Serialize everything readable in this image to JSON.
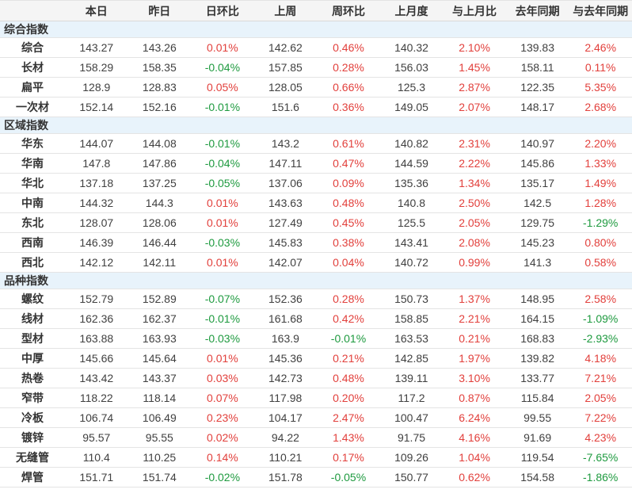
{
  "colors": {
    "positive_change": "#e2403c",
    "negative_change": "#1e9a3f",
    "section_row_background": "#e8f3fb",
    "header_row_background": "#f5f5f5",
    "body_text": "#404040",
    "row_border": "#e4e4e4"
  },
  "table": {
    "columns": [
      "",
      "本日",
      "昨日",
      "日环比",
      "上周",
      "周环比",
      "上月度",
      "与上月比",
      "去年同期",
      "与去年同期"
    ],
    "sections": [
      {
        "id": "composite",
        "title": "综合指数",
        "rows": [
          {
            "label": "综合",
            "values": [
              "143.27",
              "143.26",
              "0.01%",
              "142.62",
              "0.46%",
              "140.32",
              "2.10%",
              "139.83",
              "2.46%"
            ]
          },
          {
            "label": "长材",
            "values": [
              "158.29",
              "158.35",
              "-0.04%",
              "157.85",
              "0.28%",
              "156.03",
              "1.45%",
              "158.11",
              "0.11%"
            ]
          },
          {
            "label": "扁平",
            "values": [
              "128.9",
              "128.83",
              "0.05%",
              "128.05",
              "0.66%",
              "125.3",
              "2.87%",
              "122.35",
              "5.35%"
            ]
          },
          {
            "label": "一次材",
            "values": [
              "152.14",
              "152.16",
              "-0.01%",
              "151.6",
              "0.36%",
              "149.05",
              "2.07%",
              "148.17",
              "2.68%"
            ]
          }
        ]
      },
      {
        "id": "regional",
        "title": "区域指数",
        "rows": [
          {
            "label": "华东",
            "values": [
              "144.07",
              "144.08",
              "-0.01%",
              "143.2",
              "0.61%",
              "140.82",
              "2.31%",
              "140.97",
              "2.20%"
            ]
          },
          {
            "label": "华南",
            "values": [
              "147.8",
              "147.86",
              "-0.04%",
              "147.11",
              "0.47%",
              "144.59",
              "2.22%",
              "145.86",
              "1.33%"
            ]
          },
          {
            "label": "华北",
            "values": [
              "137.18",
              "137.25",
              "-0.05%",
              "137.06",
              "0.09%",
              "135.36",
              "1.34%",
              "135.17",
              "1.49%"
            ]
          },
          {
            "label": "中南",
            "values": [
              "144.32",
              "144.3",
              "0.01%",
              "143.63",
              "0.48%",
              "140.8",
              "2.50%",
              "142.5",
              "1.28%"
            ]
          },
          {
            "label": "东北",
            "values": [
              "128.07",
              "128.06",
              "0.01%",
              "127.49",
              "0.45%",
              "125.5",
              "2.05%",
              "129.75",
              "-1.29%"
            ]
          },
          {
            "label": "西南",
            "values": [
              "146.39",
              "146.44",
              "-0.03%",
              "145.83",
              "0.38%",
              "143.41",
              "2.08%",
              "145.23",
              "0.80%"
            ]
          },
          {
            "label": "西北",
            "values": [
              "142.12",
              "142.11",
              "0.01%",
              "142.07",
              "0.04%",
              "140.72",
              "0.99%",
              "141.3",
              "0.58%"
            ]
          }
        ]
      },
      {
        "id": "variety",
        "title": "品种指数",
        "rows": [
          {
            "label": "螺纹",
            "values": [
              "152.79",
              "152.89",
              "-0.07%",
              "152.36",
              "0.28%",
              "150.73",
              "1.37%",
              "148.95",
              "2.58%"
            ]
          },
          {
            "label": "线材",
            "values": [
              "162.36",
              "162.37",
              "-0.01%",
              "161.68",
              "0.42%",
              "158.85",
              "2.21%",
              "164.15",
              "-1.09%"
            ]
          },
          {
            "label": "型材",
            "values": [
              "163.88",
              "163.93",
              "-0.03%",
              "163.9",
              "-0.01%",
              "163.53",
              "0.21%",
              "168.83",
              "-2.93%"
            ]
          },
          {
            "label": "中厚",
            "values": [
              "145.66",
              "145.64",
              "0.01%",
              "145.36",
              "0.21%",
              "142.85",
              "1.97%",
              "139.82",
              "4.18%"
            ]
          },
          {
            "label": "热卷",
            "values": [
              "143.42",
              "143.37",
              "0.03%",
              "142.73",
              "0.48%",
              "139.11",
              "3.10%",
              "133.77",
              "7.21%"
            ]
          },
          {
            "label": "窄带",
            "values": [
              "118.22",
              "118.14",
              "0.07%",
              "117.98",
              "0.20%",
              "117.2",
              "0.87%",
              "115.84",
              "2.05%"
            ]
          },
          {
            "label": "冷板",
            "values": [
              "106.74",
              "106.49",
              "0.23%",
              "104.17",
              "2.47%",
              "100.47",
              "6.24%",
              "99.55",
              "7.22%"
            ]
          },
          {
            "label": "镀锌",
            "values": [
              "95.57",
              "95.55",
              "0.02%",
              "94.22",
              "1.43%",
              "91.75",
              "4.16%",
              "91.69",
              "4.23%"
            ]
          },
          {
            "label": "无缝管",
            "values": [
              "110.4",
              "110.25",
              "0.14%",
              "110.21",
              "0.17%",
              "109.26",
              "1.04%",
              "119.54",
              "-7.65%"
            ]
          },
          {
            "label": "焊管",
            "values": [
              "151.71",
              "151.74",
              "-0.02%",
              "151.78",
              "-0.05%",
              "150.77",
              "0.62%",
              "154.58",
              "-1.86%"
            ]
          }
        ]
      }
    ]
  }
}
